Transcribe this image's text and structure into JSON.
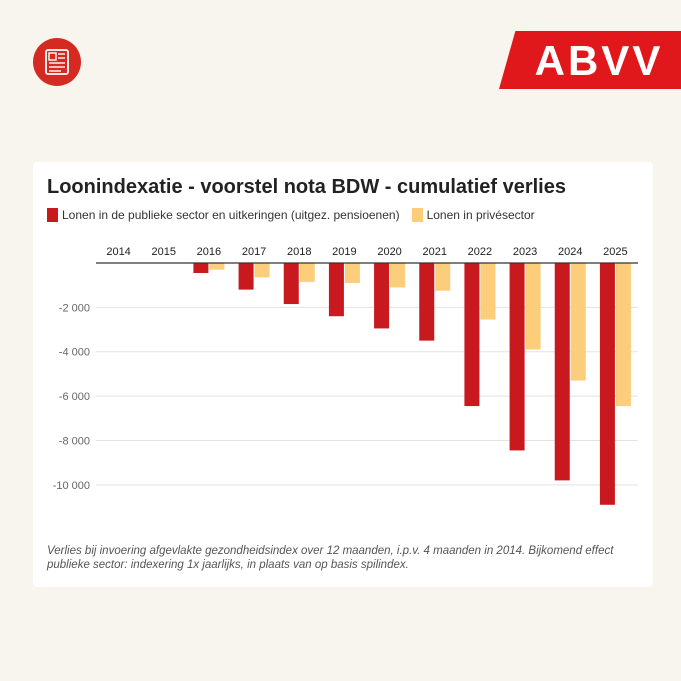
{
  "header": {
    "news_icon": "newspaper-icon",
    "logo_text": "ABVV",
    "logo_color": "#e0181c"
  },
  "chart_data": {
    "type": "bar",
    "title": "Loonindexatie - voorstel nota BDW - cumulatief verlies",
    "categories": [
      "2014",
      "2015",
      "2016",
      "2017",
      "2018",
      "2019",
      "2020",
      "2021",
      "2022",
      "2023",
      "2024",
      "2025"
    ],
    "series": [
      {
        "name": "Lonen in de publieke sector en uitkeringen (uitgez. pensioenen)",
        "color": "#c8191e",
        "values": [
          0,
          0,
          -450,
          -1200,
          -1850,
          -2400,
          -2950,
          -3500,
          -6450,
          -8450,
          -9800,
          -10900
        ]
      },
      {
        "name": "Lonen in privésector",
        "color": "#fccd7a",
        "values": [
          0,
          0,
          -300,
          -650,
          -850,
          -900,
          -1100,
          -1250,
          -2550,
          -3900,
          -5300,
          -6450
        ]
      }
    ],
    "ylim": [
      -11000,
      0
    ],
    "yticks": [
      -2000,
      -4000,
      -6000,
      -8000,
      -10000
    ],
    "ytick_labels": [
      "-2 000",
      "-4 000",
      "-6 000",
      "-8 000",
      "-10 000"
    ],
    "xaxis_position": "top",
    "legend_position": "top-left",
    "grid": true,
    "footnote": "Verlies bij invoering afgevlakte gezondheidsindex over 12 maanden, i.p.v. 4 maanden in 2014. Bijkomend effect publieke sector: indexering 1x jaarlijks, in plaats van op basis spilindex."
  }
}
